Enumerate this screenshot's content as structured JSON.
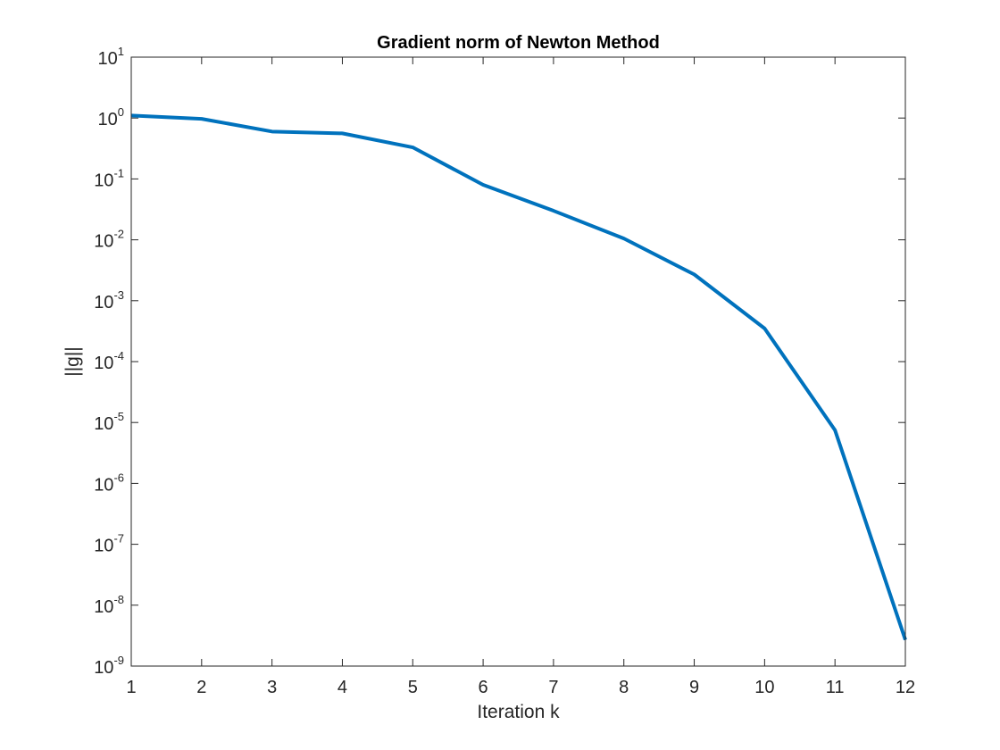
{
  "chart_data": {
    "type": "line",
    "title": "Gradient norm of Newton Method",
    "xlabel": "Iteration k",
    "ylabel": "||g||",
    "x": [
      1,
      2,
      3,
      4,
      5,
      6,
      7,
      8,
      9,
      10,
      11,
      12
    ],
    "series": [
      {
        "values": [
          1.1,
          0.97,
          0.6,
          0.56,
          0.33,
          0.08,
          0.03,
          0.0105,
          0.0027,
          0.00035,
          7.5e-06,
          2.7e-09
        ],
        "color": "#0072BD"
      }
    ],
    "xlim": [
      1,
      12
    ],
    "ylim": [
      1e-09,
      10
    ],
    "yscale": "log",
    "xticks": [
      1,
      2,
      3,
      4,
      5,
      6,
      7,
      8,
      9,
      10,
      11,
      12
    ],
    "yticks": [
      {
        "base": "10",
        "exp": "-9",
        "value": 1e-09
      },
      {
        "base": "10",
        "exp": "-8",
        "value": 1e-08
      },
      {
        "base": "10",
        "exp": "-7",
        "value": 1e-07
      },
      {
        "base": "10",
        "exp": "-6",
        "value": 1e-06
      },
      {
        "base": "10",
        "exp": "-5",
        "value": 1e-05
      },
      {
        "base": "10",
        "exp": "-4",
        "value": 0.0001
      },
      {
        "base": "10",
        "exp": "-3",
        "value": 0.001
      },
      {
        "base": "10",
        "exp": "-2",
        "value": 0.01
      },
      {
        "base": "10",
        "exp": "-1",
        "value": 0.1
      },
      {
        "base": "10",
        "exp": "0",
        "value": 1
      },
      {
        "base": "10",
        "exp": "1",
        "value": 10
      }
    ],
    "grid": false,
    "box": true
  }
}
